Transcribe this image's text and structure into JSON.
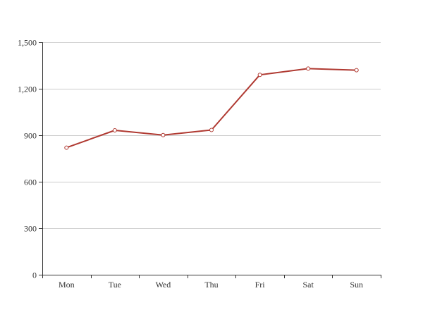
{
  "colors": {
    "series_line": "#b03a32",
    "point_fill": "#ffffff",
    "grid": "#cccccc",
    "axis": "#333333",
    "text": "#333333"
  },
  "chart_data": {
    "type": "line",
    "title": "",
    "xlabel": "",
    "ylabel": "",
    "categories": [
      "Mon",
      "Tue",
      "Wed",
      "Thu",
      "Fri",
      "Sat",
      "Sun"
    ],
    "series": [
      {
        "values": [
          820,
          932,
          901,
          934,
          1290,
          1330,
          1320
        ]
      }
    ],
    "ylim": [
      0,
      1500
    ],
    "yticks": [
      0,
      300,
      600,
      900,
      1200,
      1500
    ],
    "ytick_labels": [
      "0",
      "300",
      "600",
      "900",
      "1,200",
      "1,500"
    ],
    "grid": "horizontal",
    "legend": "none"
  }
}
